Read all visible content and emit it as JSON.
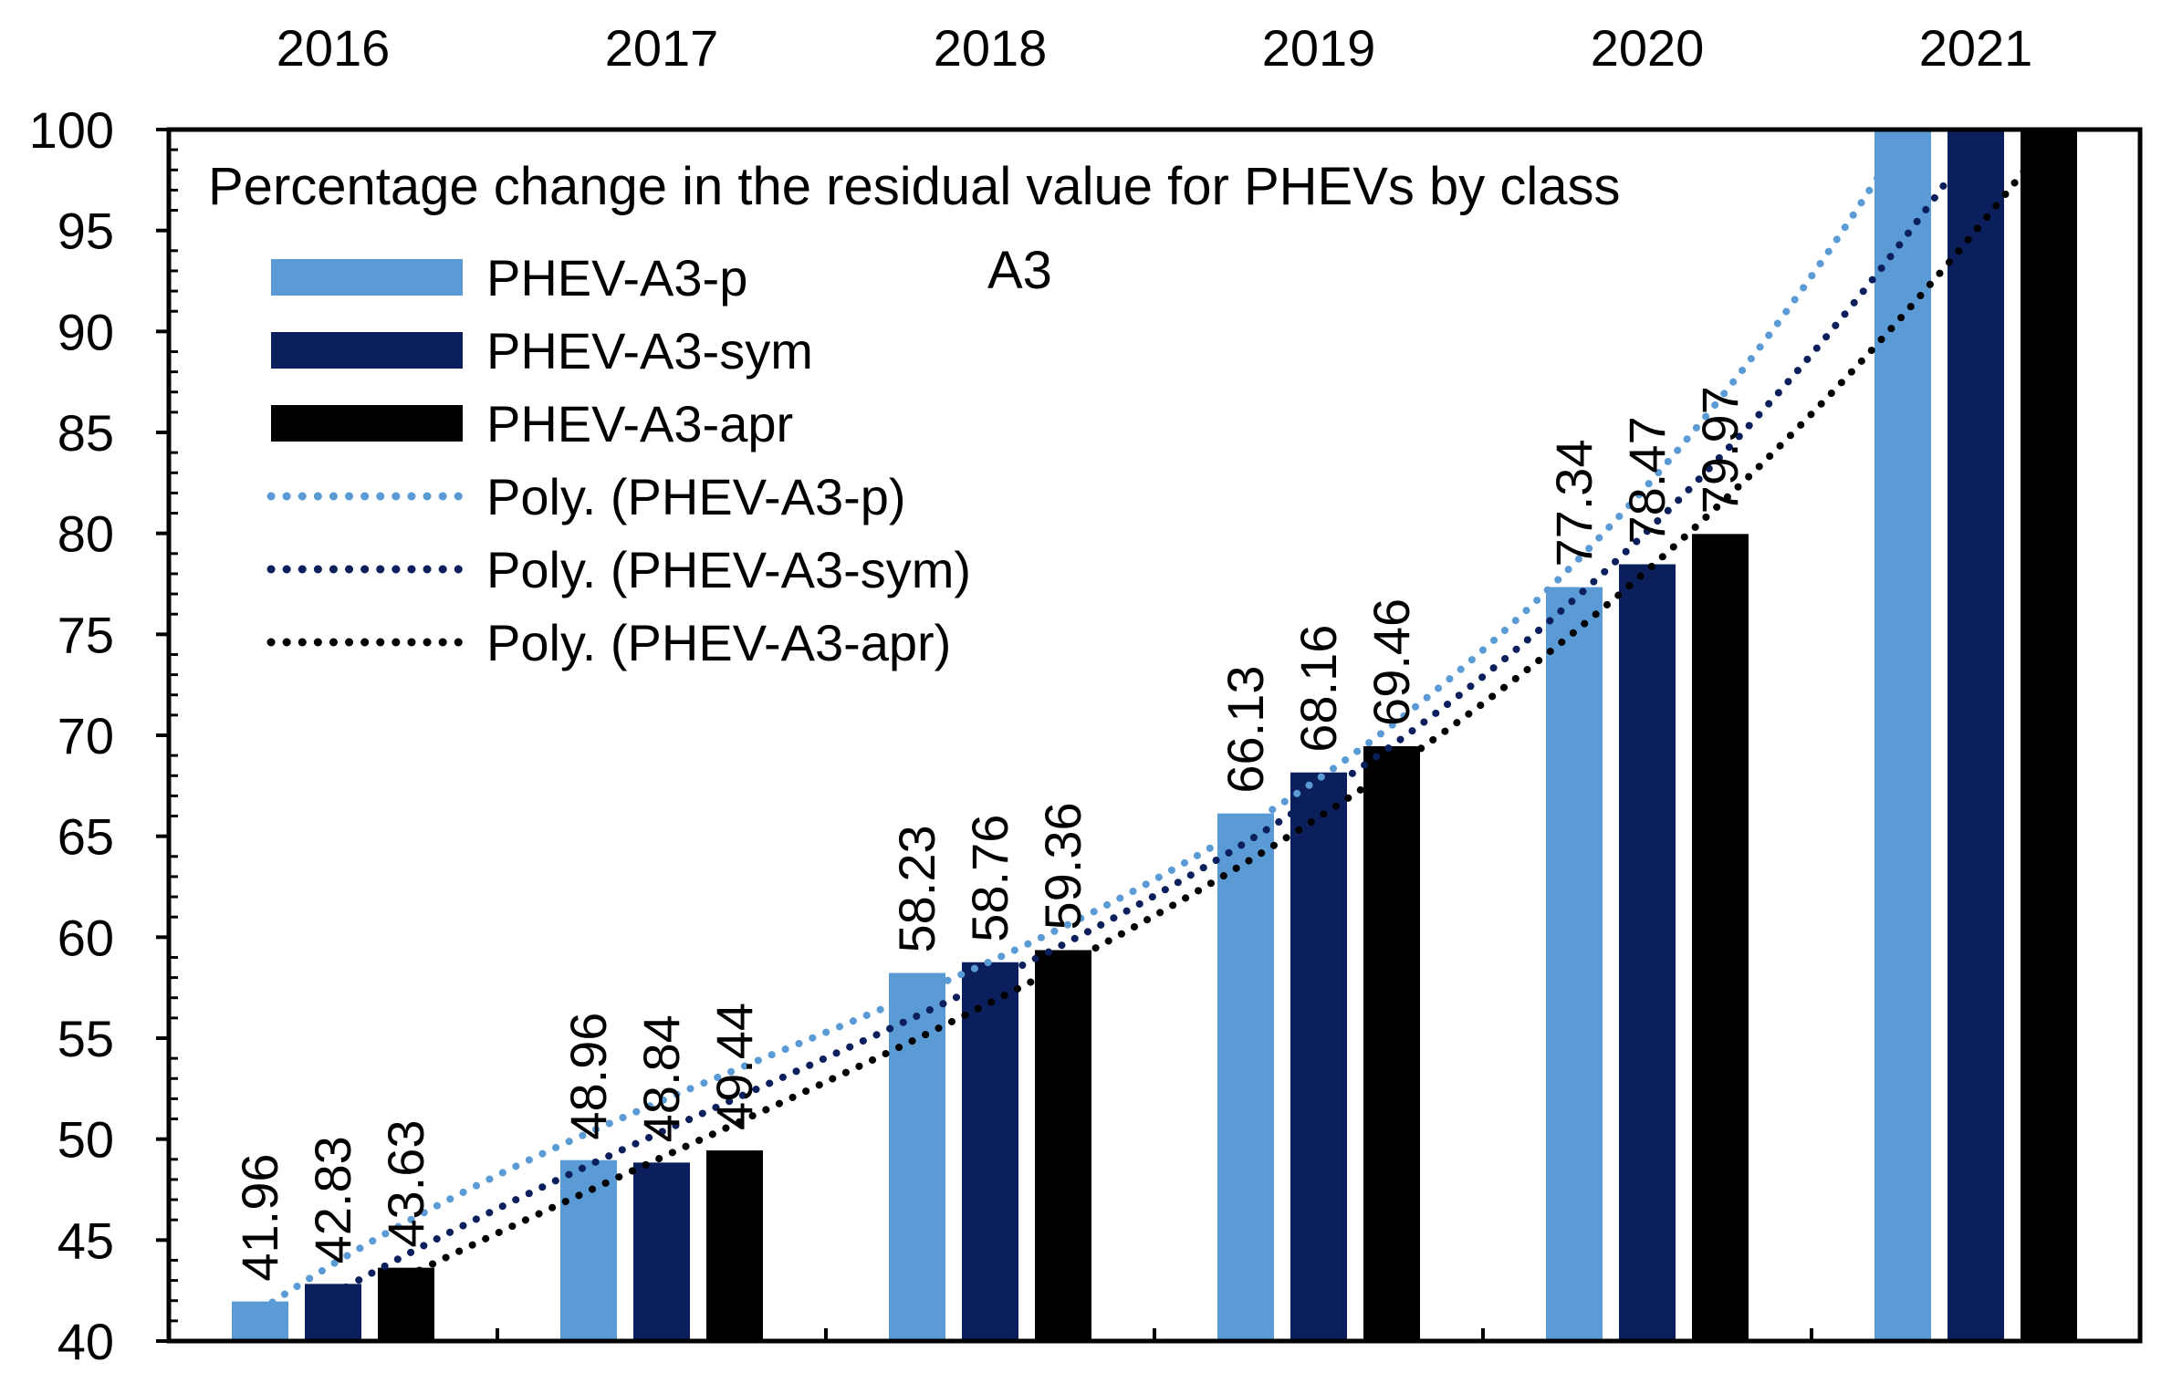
{
  "chart_data": {
    "type": "bar",
    "title": "Percentage change in the residual value for PHEVs by class",
    "subtitle": "A3",
    "categories": [
      "2016",
      "2017",
      "2018",
      "2019",
      "2020",
      "2021"
    ],
    "xlabel": "",
    "ylabel": "",
    "ylim": [
      40,
      100
    ],
    "yticks": [
      40,
      45,
      50,
      55,
      60,
      65,
      70,
      75,
      80,
      85,
      90,
      95,
      100
    ],
    "ytick_labels": [
      "40",
      "45",
      "50",
      "55",
      "60",
      "65",
      "70",
      "75",
      "80",
      "85",
      "90",
      "95",
      "100"
    ],
    "series": [
      {
        "name": "PHEV-A3-p",
        "color": "#5b9bd5",
        "values": [
          41.96,
          48.96,
          58.23,
          66.13,
          77.34,
          100
        ],
        "data_labels": [
          "41.96",
          "48.96",
          "58.23",
          "66.13",
          "77.34",
          null
        ]
      },
      {
        "name": "PHEV-A3-sym",
        "color": "#0b1f5c",
        "values": [
          42.83,
          48.84,
          58.76,
          68.16,
          78.47,
          100
        ],
        "data_labels": [
          "42.83",
          "48.84",
          "58.76",
          "68.16",
          "78.47",
          null
        ]
      },
      {
        "name": "PHEV-A3-apr",
        "color": "#000000",
        "values": [
          43.63,
          49.44,
          59.36,
          69.46,
          79.97,
          100
        ],
        "data_labels": [
          "43.63",
          "49.44",
          "59.36",
          "69.46",
          "79.97",
          null
        ]
      }
    ],
    "trendlines": [
      {
        "name": "Poly. (PHEV-A3-p)",
        "color": "#5b9bd5",
        "style": "dotted"
      },
      {
        "name": "Poly. (PHEV-A3-sym)",
        "color": "#0b1f5c",
        "style": "dotted"
      },
      {
        "name": "Poly. (PHEV-A3-apr)",
        "color": "#000000",
        "style": "dotted"
      }
    ],
    "legend_position": "top-left",
    "grid": false
  }
}
